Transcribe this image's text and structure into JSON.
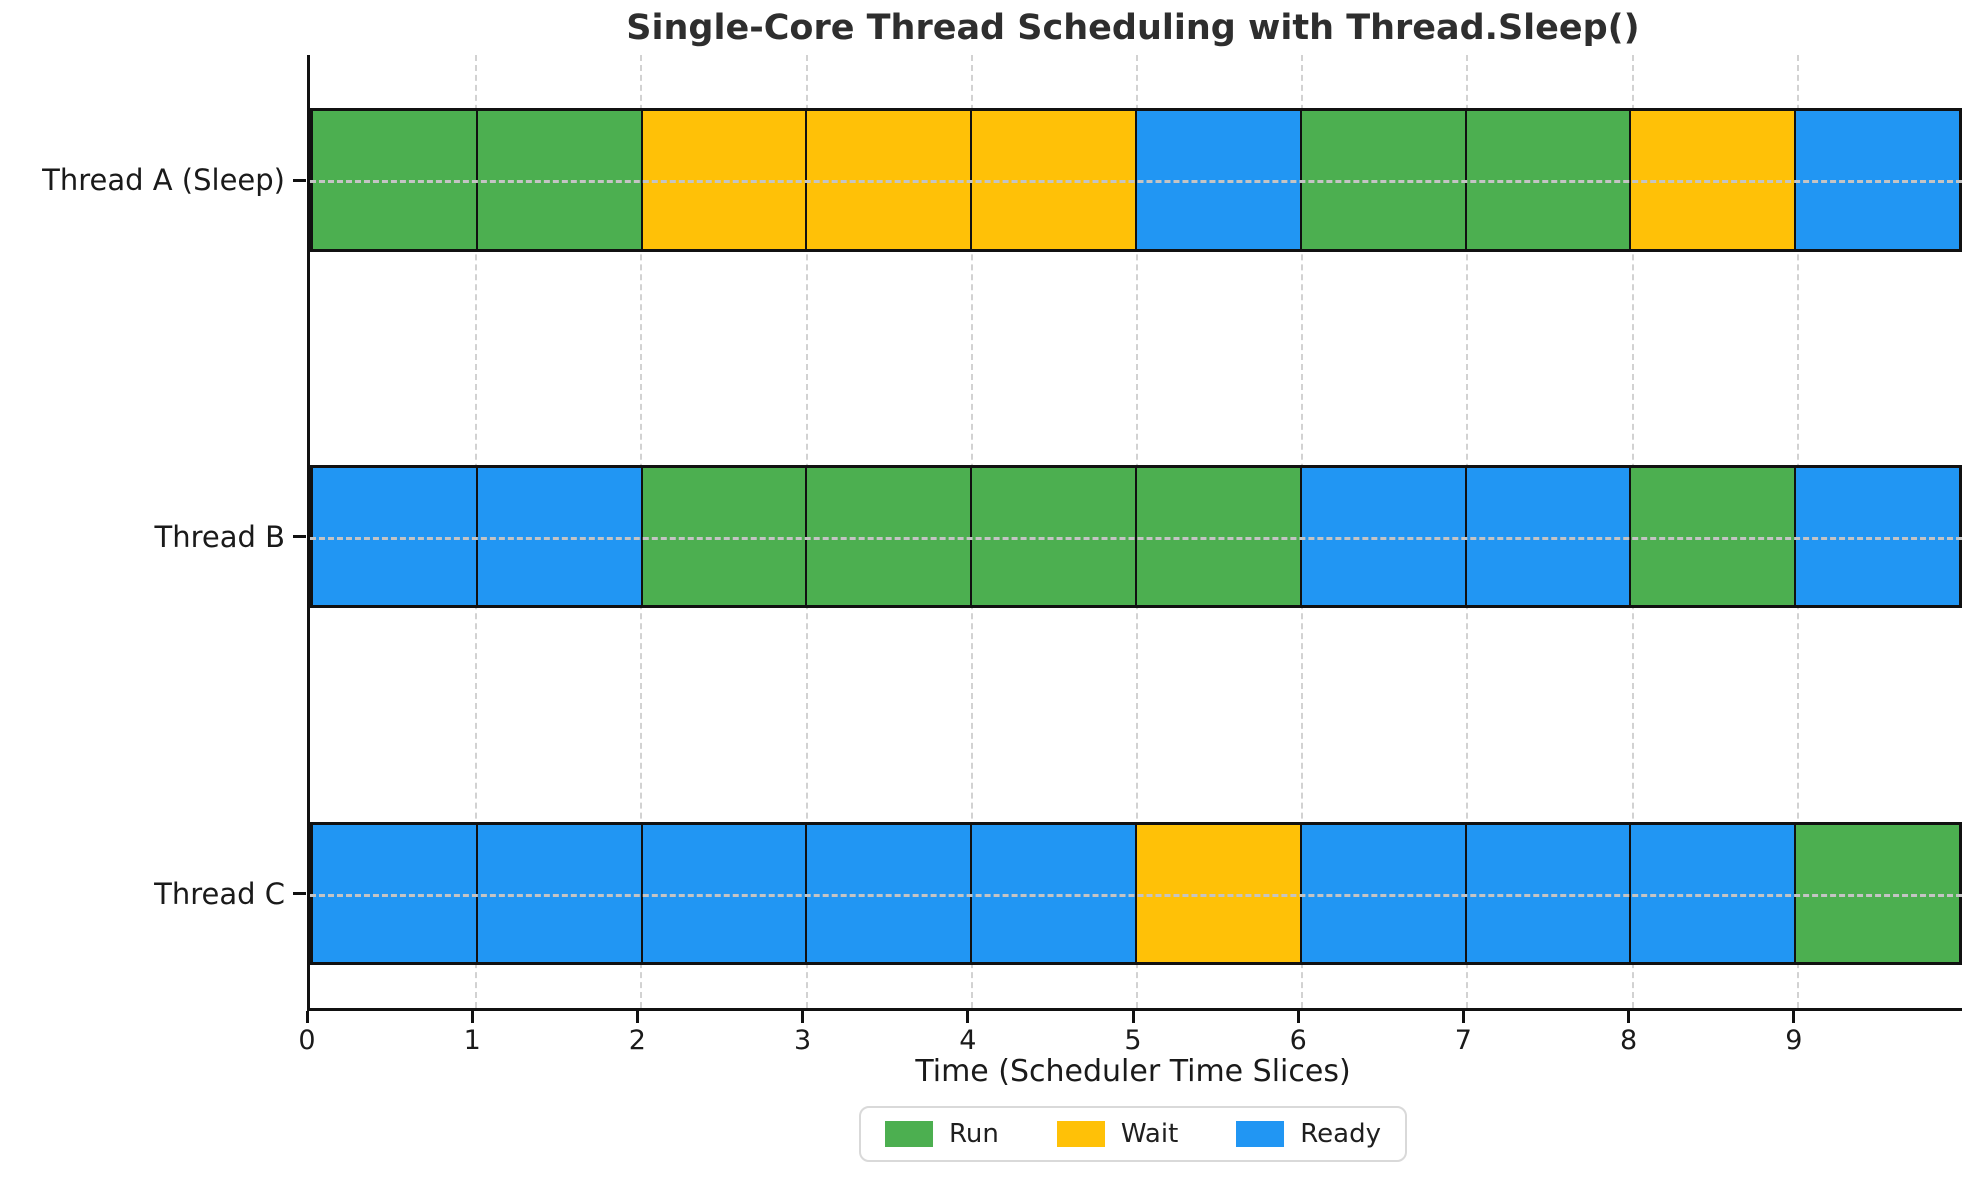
{
  "chart_data": {
    "type": "gantt",
    "title": "Single-Core Thread Scheduling with Thread.Sleep()",
    "xlabel": "Time (Scheduler Time Slices)",
    "x_ticks": [
      "0",
      "1",
      "2",
      "3",
      "4",
      "5",
      "6",
      "7",
      "8",
      "9"
    ],
    "xlim": [
      0,
      10
    ],
    "grid": "dashed vertical lines at integer slices; dashed horizontal line at each row center",
    "legend_position": "bottom center",
    "legend": [
      {
        "label": "Run",
        "color": "#4caf50"
      },
      {
        "label": "Wait",
        "color": "#ffc107"
      },
      {
        "label": "Ready",
        "color": "#2196f3"
      }
    ],
    "state_colors": {
      "Run": "#4caf50",
      "Wait": "#ffc107",
      "Ready": "#2196f3"
    },
    "rows": [
      {
        "label": "Thread A (Sleep)",
        "states": [
          "Run",
          "Run",
          "Wait",
          "Wait",
          "Wait",
          "Ready",
          "Run",
          "Run",
          "Wait",
          "Ready"
        ]
      },
      {
        "label": "Thread B",
        "states": [
          "Ready",
          "Ready",
          "Run",
          "Run",
          "Run",
          "Run",
          "Ready",
          "Ready",
          "Run",
          "Ready"
        ]
      },
      {
        "label": "Thread C",
        "states": [
          "Ready",
          "Ready",
          "Ready",
          "Ready",
          "Ready",
          "Wait",
          "Ready",
          "Ready",
          "Ready",
          "Run"
        ]
      }
    ]
  }
}
